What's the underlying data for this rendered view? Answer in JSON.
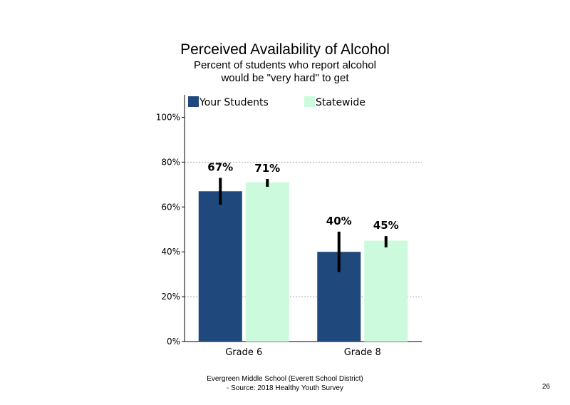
{
  "chart_data": {
    "type": "bar",
    "title": "Perceived Availability of Alcohol",
    "subtitle_lines": [
      "Percent of students who report alcohol",
      "would be \"very hard\" to get"
    ],
    "categories": [
      "Grade 6",
      "Grade 8"
    ],
    "series": [
      {
        "name": "Your Students",
        "color": "#1f497d",
        "values": [
          67,
          40
        ],
        "labels": [
          "67%",
          "40%"
        ],
        "error_low": [
          61,
          31
        ],
        "error_high": [
          73,
          49
        ]
      },
      {
        "name": "Statewide",
        "color": "#ccfadc",
        "values": [
          71,
          45
        ],
        "labels": [
          "71%",
          "45%"
        ],
        "error_low": [
          69,
          42
        ],
        "error_high": [
          72.5,
          47
        ]
      }
    ],
    "ylim": [
      0,
      110
    ],
    "yticks": [
      0,
      20,
      40,
      60,
      80,
      100
    ],
    "ytick_labels": [
      "0%",
      "20%",
      "40%",
      "60%",
      "80%",
      "100%"
    ],
    "gridlines": [
      20,
      80
    ],
    "legend_position": "top"
  },
  "footer": {
    "line1": "Evergreen Middle  School (Everett School District)",
    "line2": "- Source: 2018 Healthy  Youth Survey",
    "page_number": "26"
  }
}
